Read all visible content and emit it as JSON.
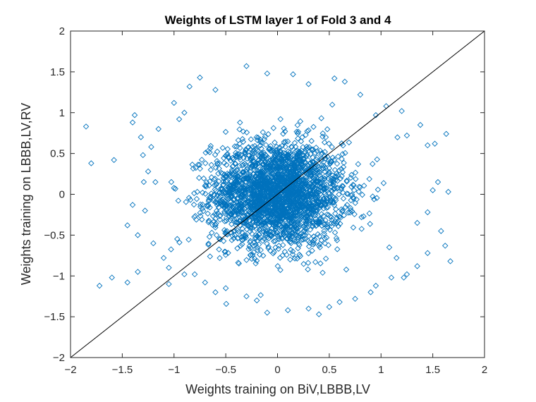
{
  "chart_data": {
    "type": "scatter",
    "title": "Weights of LSTM layer 1 of Fold 3 and 4",
    "xlabel": "Weights training on BiV,LBBB,LV",
    "ylabel": "Weights training on LBBB,LV,RV",
    "xlim": [
      -2,
      2
    ],
    "ylim": [
      -2,
      2
    ],
    "xticks": [
      -2,
      -1.5,
      -1,
      -0.5,
      0,
      0.5,
      1,
      1.5,
      2
    ],
    "yticks": [
      -2,
      -1.5,
      -1,
      -0.5,
      0,
      0.5,
      1,
      1.5,
      2
    ],
    "xtick_labels": [
      "−2",
      "−1.5",
      "−1",
      "−0.5",
      "0",
      "0.5",
      "1",
      "1.5",
      "2"
    ],
    "ytick_labels": [
      "−2",
      "−1.5",
      "−1",
      "−0.5",
      "0",
      "0.5",
      "1",
      "1.5",
      "2"
    ],
    "grid": false,
    "marker": "diamond",
    "marker_color": "#0072BD",
    "reference_line": {
      "from": [
        -2,
        -2
      ],
      "to": [
        2,
        2
      ],
      "color": "#000000"
    },
    "series": [
      {
        "cluster": {
          "center": [
            0.0,
            0.0
          ],
          "std": [
            0.32,
            0.32
          ],
          "point_count": 2600
        },
        "points": [
          [
            -1.85,
            0.83
          ],
          [
            -1.8,
            0.38
          ],
          [
            -1.58,
            0.42
          ],
          [
            -1.72,
            -1.12
          ],
          [
            -1.6,
            -1.02
          ],
          [
            -1.45,
            -1.08
          ],
          [
            -1.38,
            0.97
          ],
          [
            -1.4,
            0.88
          ],
          [
            -1.32,
            0.7
          ],
          [
            -1.45,
            -0.38
          ],
          [
            -1.4,
            -0.13
          ],
          [
            -1.35,
            -0.5
          ],
          [
            -1.3,
            0.48
          ],
          [
            -1.25,
            0.28
          ],
          [
            -1.35,
            -0.95
          ],
          [
            -1.15,
            0.8
          ],
          [
            -1.1,
            -0.78
          ],
          [
            -1.2,
            -0.6
          ],
          [
            -1.05,
            -1.1
          ],
          [
            -1.0,
            1.12
          ],
          [
            -0.75,
            1.43
          ],
          [
            -0.85,
            1.32
          ],
          [
            -0.6,
            1.28
          ],
          [
            -0.9,
            1.0
          ],
          [
            -0.3,
            1.57
          ],
          [
            -0.1,
            1.48
          ],
          [
            0.15,
            1.47
          ],
          [
            0.3,
            1.35
          ],
          [
            0.55,
            1.42
          ],
          [
            0.65,
            1.38
          ],
          [
            0.8,
            1.22
          ],
          [
            0.95,
            0.97
          ],
          [
            1.05,
            1.08
          ],
          [
            1.2,
            1.02
          ],
          [
            1.25,
            0.72
          ],
          [
            1.45,
            0.6
          ],
          [
            1.38,
            0.85
          ],
          [
            1.52,
            0.62
          ],
          [
            1.63,
            0.74
          ],
          [
            1.55,
            0.15
          ],
          [
            1.5,
            0.05
          ],
          [
            1.65,
            0.03
          ],
          [
            1.45,
            -0.22
          ],
          [
            1.35,
            -0.35
          ],
          [
            1.58,
            -0.45
          ],
          [
            1.62,
            -0.63
          ],
          [
            1.67,
            -0.82
          ],
          [
            1.45,
            -0.72
          ],
          [
            1.35,
            -0.88
          ],
          [
            1.25,
            -0.98
          ],
          [
            1.22,
            -1.02
          ],
          [
            1.1,
            -1.02
          ],
          [
            0.95,
            -1.12
          ],
          [
            0.75,
            -1.28
          ],
          [
            0.6,
            -1.32
          ],
          [
            0.4,
            -1.47
          ],
          [
            0.3,
            -1.4
          ],
          [
            0.1,
            -1.42
          ],
          [
            -0.1,
            -1.45
          ],
          [
            -0.3,
            -1.25
          ],
          [
            -0.5,
            -1.15
          ],
          [
            -0.7,
            -1.08
          ],
          [
            -0.9,
            -0.98
          ],
          [
            -1.05,
            -0.9
          ],
          [
            -0.8,
            -0.98
          ],
          [
            -0.95,
            0.92
          ],
          [
            -1.22,
            0.58
          ],
          [
            -1.28,
            -0.2
          ],
          [
            -1.18,
            0.15
          ],
          [
            1.08,
            -0.65
          ],
          [
            1.15,
            -0.78
          ],
          [
            0.9,
            -1.2
          ],
          [
            -0.2,
            -1.3
          ],
          [
            0.5,
            -1.38
          ],
          [
            -0.6,
            -1.2
          ]
        ]
      }
    ]
  }
}
